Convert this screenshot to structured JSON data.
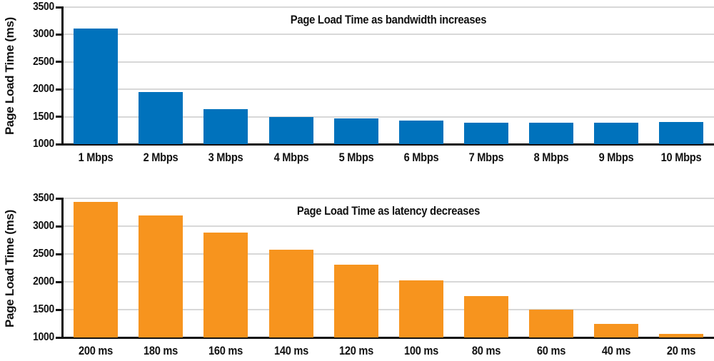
{
  "chart_data": [
    {
      "type": "bar",
      "title": "Page Load Time as bandwidth increases",
      "ylabel": "Page Load Time (ms)",
      "xlabel": "",
      "categories": [
        "1 Mbps",
        "2 Mbps",
        "3 Mbps",
        "4 Mbps",
        "5 Mbps",
        "6 Mbps",
        "7 Mbps",
        "8 Mbps",
        "9 Mbps",
        "10 Mbps"
      ],
      "values": [
        3110,
        1950,
        1635,
        1500,
        1470,
        1425,
        1390,
        1390,
        1395,
        1400
      ],
      "ylim": [
        1000,
        3500
      ],
      "yticks": [
        1000,
        1500,
        2000,
        2500,
        3000,
        3500
      ],
      "bar_color": "#0072BC",
      "grid": true,
      "gridline_color": "#D8D8D8",
      "axis_color": "#111111",
      "legend": "none"
    },
    {
      "type": "bar",
      "title": "Page Load Time as latency decreases",
      "ylabel": "Page Load Time (ms)",
      "xlabel": "",
      "categories": [
        "200 ms",
        "180 ms",
        "160 ms",
        "140 ms",
        "120 ms",
        "100 ms",
        "80 ms",
        "60 ms",
        "40 ms",
        "20 ms"
      ],
      "values": [
        3430,
        3190,
        2880,
        2580,
        2310,
        2020,
        1740,
        1500,
        1240,
        1070
      ],
      "ylim": [
        1000,
        3500
      ],
      "yticks": [
        1000,
        1500,
        2000,
        2500,
        3000,
        3500
      ],
      "bar_color": "#F7941E",
      "grid": true,
      "gridline_color": "#D8D8D8",
      "axis_color": "#111111",
      "legend": "none"
    }
  ]
}
